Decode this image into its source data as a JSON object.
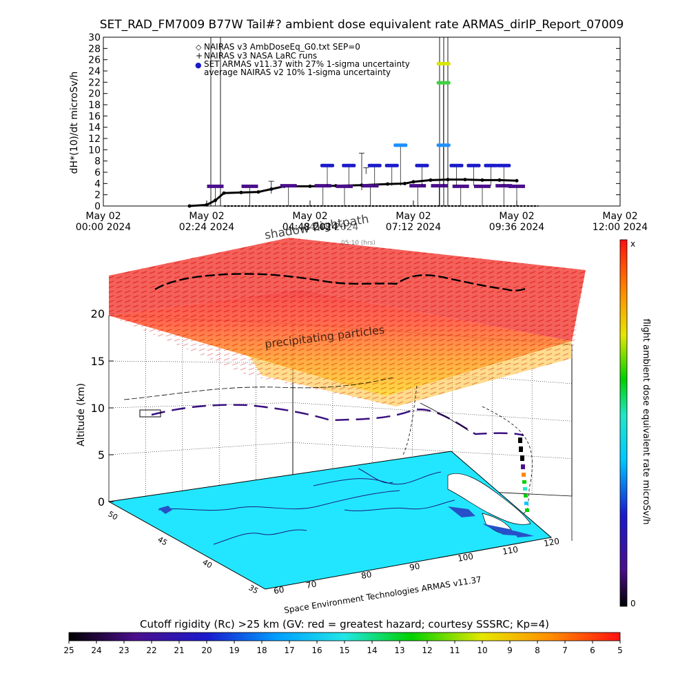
{
  "title": "SET_RAD_FM7009  B77W Tail#? ambient dose equivalent rate ARMAS_dirIP_Report_07009",
  "colors": {
    "nairas_v2": "#4b0f8c",
    "armas": "#1a1acc",
    "nairas_v3": "#000000",
    "ocean": "#22e6ff",
    "land": "#2850c8"
  },
  "chart_data": [
    {
      "type": "line",
      "ylabel": "dH*(10)/dt microSv/h",
      "ylim": [
        0,
        30
      ],
      "y_ticks": [
        "0",
        "2",
        "4",
        "6",
        "8",
        "10",
        "12",
        "14",
        "16",
        "18",
        "20",
        "22",
        "24",
        "26",
        "28",
        "30"
      ],
      "x_ticks": [
        {
          "line1": "May 02",
          "line2": "00:00 2024",
          "hour": 0
        },
        {
          "line1": "May 02",
          "line2": "02:24 2024",
          "hour": 2.4
        },
        {
          "line1": "May 02",
          "line2": "04:48 2024",
          "hour": 4.8
        },
        {
          "line1": "May 02",
          "line2": "07:12 2024",
          "hour": 7.2
        },
        {
          "line1": "May 02",
          "line2": "09:36 2024",
          "hour": 9.6
        },
        {
          "line1": "May 02",
          "line2": "12:00 2024",
          "hour": 12.0
        }
      ],
      "xlim_hours": [
        0,
        12
      ],
      "legend": [
        {
          "symbol": "◇",
          "label": "NAIRAS v3 AmbDoseEq_G0.txt SEP=0"
        },
        {
          "symbol": "+",
          "label": "NAIRAS v3 NASA LaRC runs"
        },
        {
          "symbol": "●",
          "label": "SET ARMAS v11.37 with 27% 1-sigma uncertainty"
        },
        {
          "symbol": "",
          "label": "average NAIRAS v2 10% 1-sigma uncertainty"
        }
      ],
      "series": [
        {
          "name": "NAIRAS v3 NASA LaRC runs",
          "points": [
            [
              2.0,
              0
            ],
            [
              2.4,
              0.2
            ],
            [
              2.6,
              1.0
            ],
            [
              2.8,
              2.3
            ],
            [
              3.2,
              2.4
            ],
            [
              3.6,
              2.5
            ],
            [
              3.9,
              3.0
            ],
            [
              4.2,
              3.5
            ],
            [
              4.8,
              3.5
            ],
            [
              5.4,
              3.6
            ],
            [
              6.0,
              3.7
            ],
            [
              6.6,
              3.9
            ],
            [
              7.0,
              4.0
            ],
            [
              7.2,
              4.3
            ],
            [
              7.6,
              4.6
            ],
            [
              8.0,
              4.7
            ],
            [
              8.4,
              4.7
            ],
            [
              8.8,
              4.6
            ],
            [
              9.2,
              4.6
            ],
            [
              9.6,
              4.5
            ]
          ]
        },
        {
          "name": "average NAIRAS v2 10% 1-sigma uncertainty",
          "points": [
            [
              2.6,
              3.5
            ],
            [
              3.4,
              3.5
            ],
            [
              4.3,
              3.6
            ],
            [
              5.1,
              3.6
            ],
            [
              5.6,
              3.5
            ],
            [
              6.2,
              3.6
            ],
            [
              7.3,
              3.6
            ],
            [
              7.8,
              3.6
            ],
            [
              8.3,
              3.5
            ],
            [
              8.8,
              3.5
            ],
            [
              9.3,
              3.6
            ],
            [
              9.6,
              3.5
            ]
          ]
        },
        {
          "name": "SET ARMAS v11.37 with 27% 1-sigma uncertainty",
          "points": [
            [
              5.2,
              7.2
            ],
            [
              5.7,
              7.2
            ],
            [
              6.3,
              7.2
            ],
            [
              6.7,
              7.2
            ],
            [
              6.9,
              10.8
            ],
            [
              7.4,
              7.2
            ],
            [
              7.9,
              25.3
            ],
            [
              7.9,
              21.9
            ],
            [
              7.9,
              10.8
            ],
            [
              8.2,
              7.2
            ],
            [
              8.6,
              7.2
            ],
            [
              9.0,
              7.2
            ],
            [
              9.3,
              7.2
            ]
          ]
        }
      ]
    },
    {
      "type": "scatter",
      "zlabel": "Altitude (km)",
      "z_ticks": [
        "0",
        "5",
        "10",
        "15",
        "20"
      ],
      "lat_ticks": [
        "35",
        "40",
        "45",
        "50"
      ],
      "lon_ticks": [
        "60",
        "70",
        "80",
        "90",
        "100",
        "110",
        "120"
      ],
      "labels": {
        "top": "shadow flightpath",
        "top_partial": "04:48 2024",
        "small": "05:10 (hrs)",
        "particles": "precipitating particles",
        "credit": "Space Environment Technologies ARMAS v11.37"
      }
    }
  ],
  "colorbar_right": {
    "label": "flight ambient dose equivalent rate microSv/h",
    "top": "x",
    "bottom": "0"
  },
  "colorbar_bottom": {
    "label": "Cutoff rigidity (Rc) >25 km (GV: red = greatest hazard; courtesy SSSRC; Kp=4)",
    "ticks": [
      "25",
      "24",
      "23",
      "22",
      "21",
      "20",
      "19",
      "18",
      "17",
      "16",
      "15",
      "14",
      "13",
      "12",
      "11",
      "10",
      "9",
      "8",
      "7",
      "6",
      "5"
    ]
  }
}
